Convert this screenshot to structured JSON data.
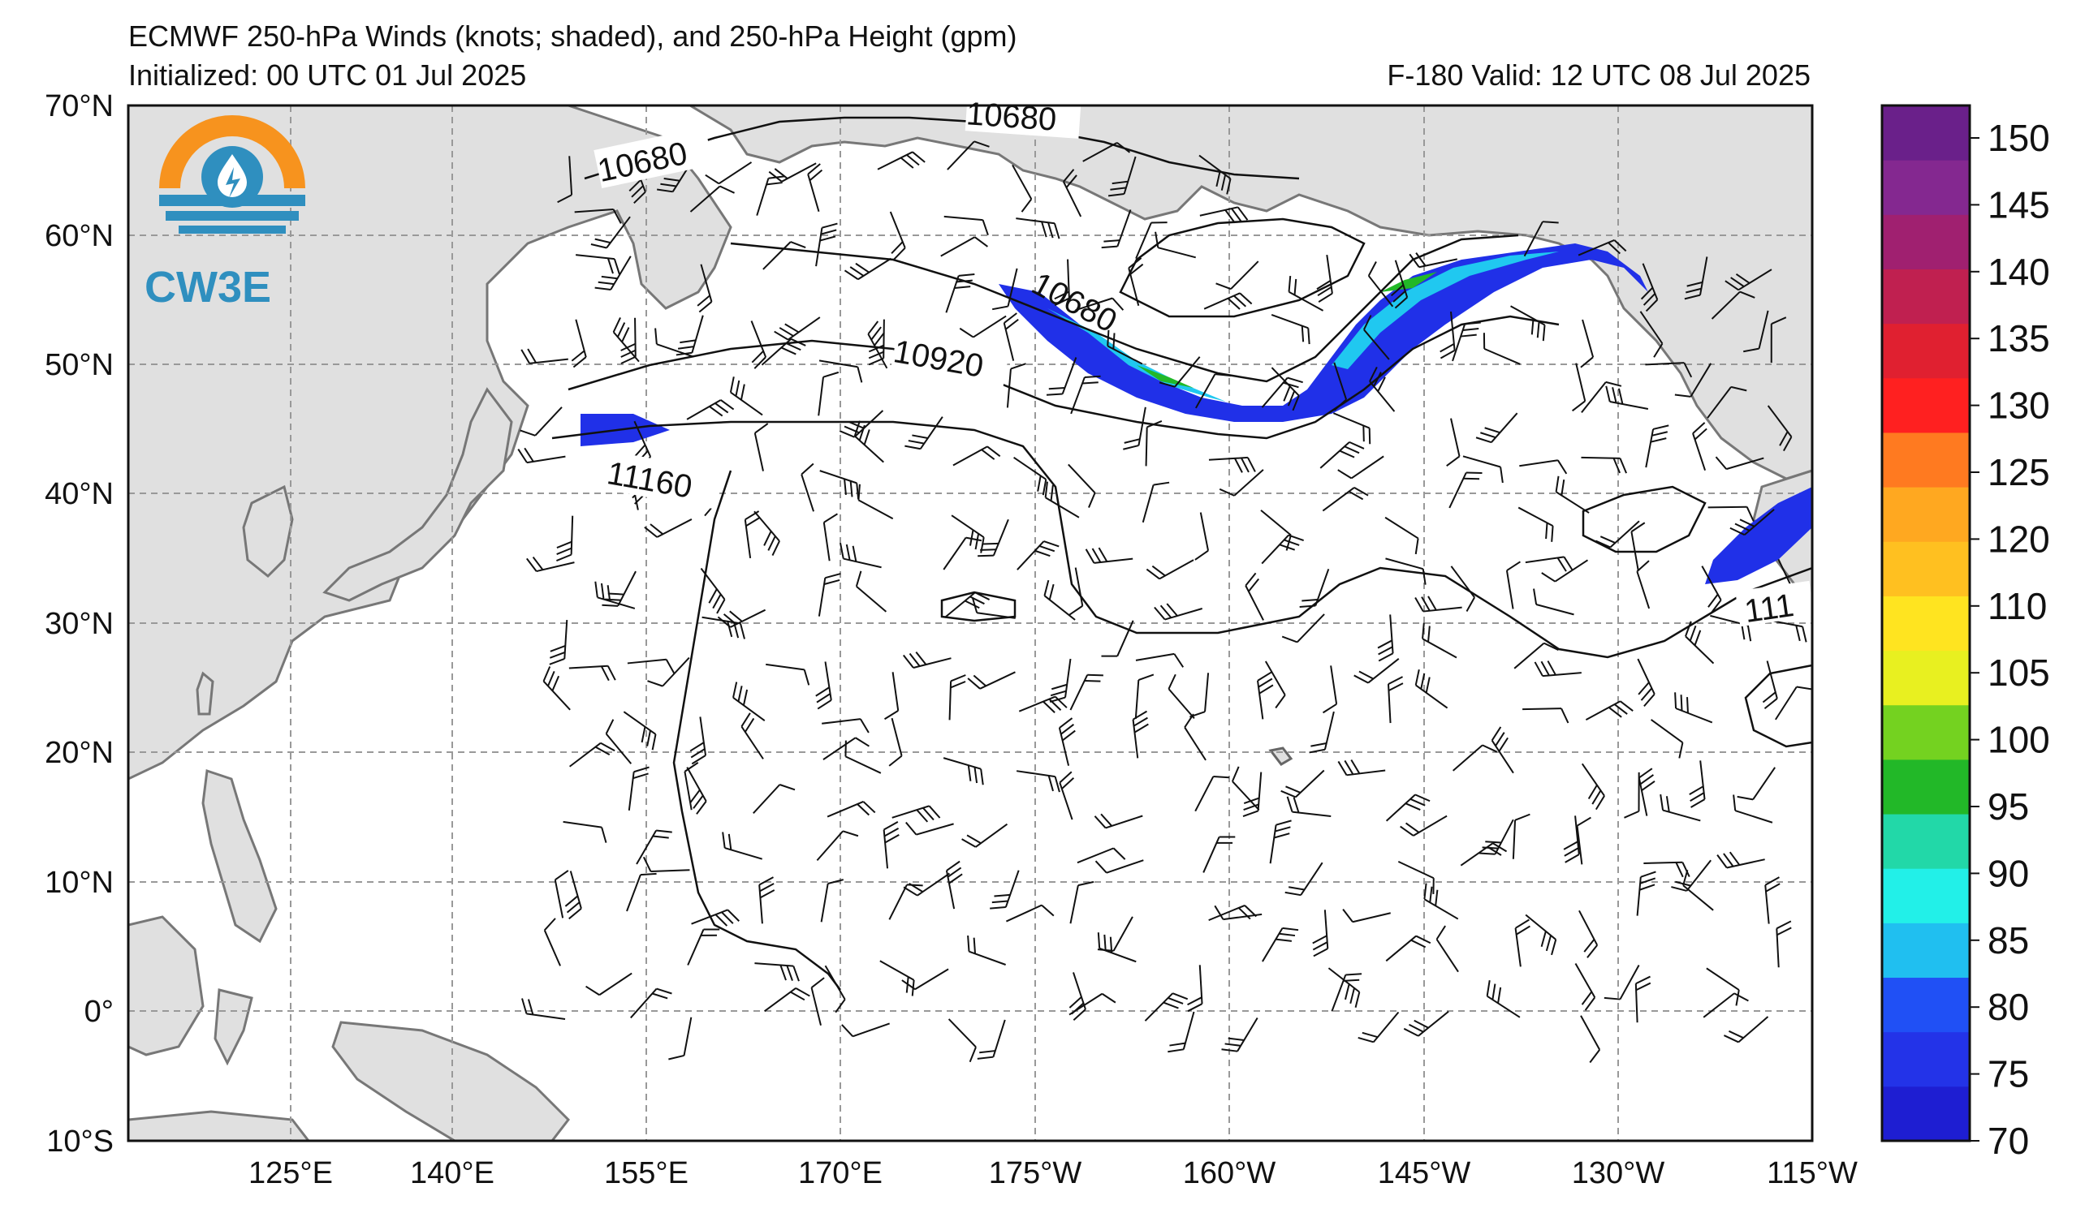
{
  "title": {
    "line1": "ECMWF 250-hPa Winds (knots; shaded), and 250-hPa Height (gpm)",
    "initialized": "Initialized: 00 UTC 01 Jul 2025",
    "valid": "F-180  Valid: 12 UTC 08 Jul 2025"
  },
  "logo": {
    "text": "CW3E",
    "icon": "water-drop-lightning-icon"
  },
  "lat_labels": [
    "70°N",
    "60°N",
    "50°N",
    "40°N",
    "30°N",
    "20°N",
    "10°N",
    "0°",
    "10°S"
  ],
  "lon_labels": [
    "125°E",
    "140°E",
    "155°E",
    "170°E",
    "175°W",
    "160°W",
    "145°W",
    "130°W",
    "115°W"
  ],
  "contour_labels": [
    "10680",
    "10680",
    "10680",
    "10920",
    "11160",
    "111"
  ],
  "colorbar": {
    "ticks": [
      "70",
      "75",
      "80",
      "85",
      "90",
      "95",
      "100",
      "105",
      "110",
      "120",
      "125",
      "130",
      "135",
      "140",
      "145",
      "150"
    ],
    "colors": [
      "#1e1ed2",
      "#2333e8",
      "#2050f5",
      "#20bff0",
      "#22f0e8",
      "#22d8a8",
      "#22b828",
      "#74d220",
      "#e8f020",
      "#ffe420",
      "#ffc020",
      "#ffa820",
      "#ff7a20",
      "#ff2020",
      "#e02030",
      "#c02050",
      "#a02070",
      "#842890",
      "#6a208a"
    ]
  },
  "colors": {
    "land": "#e0e0e0",
    "coast": "#777777",
    "grid": "#999999",
    "jet_core": "#20c060",
    "jet_edge": "#2020e0",
    "jet_mid": "#20c8f0"
  }
}
